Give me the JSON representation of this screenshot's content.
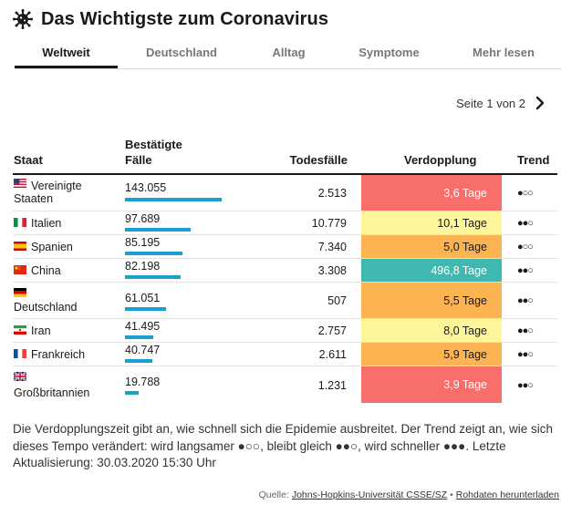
{
  "header": {
    "title": "Das Wichtigste zum Coronavirus"
  },
  "tabs": [
    {
      "label": "Weltweit",
      "active": true
    },
    {
      "label": "Deutschland",
      "active": false
    },
    {
      "label": "Alltag",
      "active": false
    },
    {
      "label": "Symptome",
      "active": false
    },
    {
      "label": "Mehr lesen",
      "active": false
    }
  ],
  "pager": {
    "label": "Seite 1 von 2"
  },
  "table": {
    "headers": {
      "country": "Staat",
      "cases_line1": "Bestätigte",
      "cases_line2": "Fälle",
      "deaths": "Todesfälle",
      "doubling": "Verdopplung",
      "trend": "Trend"
    },
    "rows": [
      {
        "country": "Vereinigte Staaten",
        "cases": "143.055",
        "cases_value": 143055,
        "deaths": "2.513",
        "doubling": "3,6 Tage",
        "trend": "●○○",
        "flag": "us-flag"
      },
      {
        "country": "Italien",
        "cases": "97.689",
        "cases_value": 97689,
        "deaths": "10.779",
        "doubling": "10,1 Tage",
        "trend": "●●○",
        "flag": "it-flag"
      },
      {
        "country": "Spanien",
        "cases": "85.195",
        "cases_value": 85195,
        "deaths": "7.340",
        "doubling": "5,0 Tage",
        "trend": "●○○",
        "flag": "es-flag"
      },
      {
        "country": "China",
        "cases": "82.198",
        "cases_value": 82198,
        "deaths": "3.308",
        "doubling": "496,8 Tage",
        "trend": "●●○",
        "flag": "cn-flag"
      },
      {
        "country": "Deutschland",
        "cases": "61.051",
        "cases_value": 61051,
        "deaths": "507",
        "doubling": "5,5 Tage",
        "trend": "●●○",
        "flag": "de-flag"
      },
      {
        "country": "Iran",
        "cases": "41.495",
        "cases_value": 41495,
        "deaths": "2.757",
        "doubling": "8,0 Tage",
        "trend": "●●○",
        "flag": "ir-flag"
      },
      {
        "country": "Frankreich",
        "cases": "40.747",
        "cases_value": 40747,
        "deaths": "2.611",
        "doubling": "5,9 Tage",
        "trend": "●●○",
        "flag": "fr-flag"
      },
      {
        "country": "Großbritannien",
        "cases": "19.788",
        "cases_value": 19788,
        "deaths": "1.231",
        "doubling": "3,9 Tage",
        "trend": "●●○",
        "flag": "gb-flag"
      }
    ]
  },
  "colors": {
    "bar": "#1a9fd0",
    "doubling_red": "#f76e6a",
    "doubling_yellow": "#fdf59a",
    "doubling_orange": "#fcb351",
    "doubling_teal": "#3fb8b1"
  },
  "note": "Die Verdopplungszeit gibt an, wie schnell sich die Epidemie ausbreitet. Der Trend zeigt an, wie sich dieses Tempo verändert: wird langsamer ●○○, bleibt gleich ●●○, wird schneller ●●●. Letzte Aktualisierung: 30.03.2020 15:30 Uhr",
  "source": {
    "prefix": "Quelle:",
    "link": "Johns-Hopkins-Universität CSSE/SZ",
    "separator": "•",
    "download": "Rohdaten herunterladen"
  }
}
